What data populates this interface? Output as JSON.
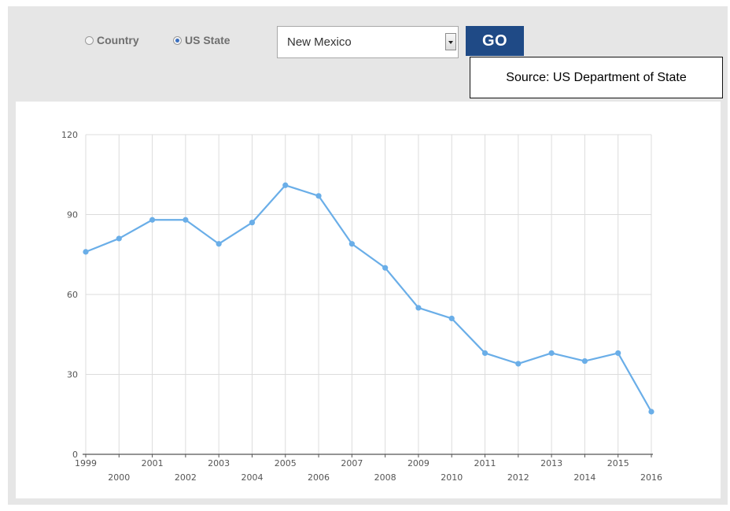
{
  "controls": {
    "radio_country": "Country",
    "radio_us_state": "US State",
    "selected_radio": "US State",
    "selected_state": "New Mexico",
    "go_label": "GO"
  },
  "source_note": "Source: US Department of State",
  "colors": {
    "line": "#6aaee8",
    "go_button": "#1f4a86",
    "background": "#e6e6e6"
  },
  "chart_data": {
    "type": "line",
    "title": "",
    "xlabel": "",
    "ylabel": "",
    "x": [
      "1999",
      "2000",
      "2001",
      "2002",
      "2003",
      "2004",
      "2005",
      "2006",
      "2007",
      "2008",
      "2009",
      "2010",
      "2011",
      "2012",
      "2013",
      "2014",
      "2015",
      "2016"
    ],
    "values": [
      76,
      81,
      88,
      88,
      79,
      87,
      101,
      97,
      79,
      70,
      55,
      51,
      38,
      34,
      38,
      35,
      38,
      16
    ],
    "ylim": [
      0,
      120
    ],
    "yticks": [
      0,
      30,
      60,
      90,
      120
    ],
    "grid": true,
    "legend": "none"
  }
}
